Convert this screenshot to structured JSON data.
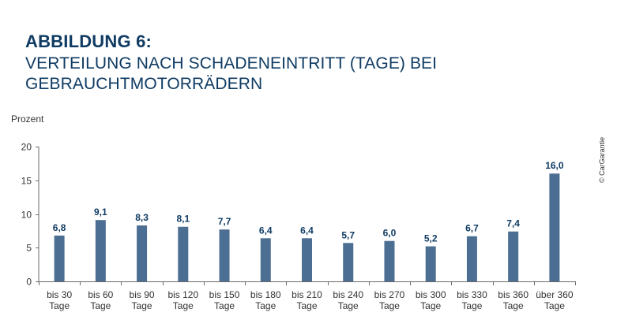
{
  "colors": {
    "title": "#0f3b63",
    "bar": "#4d6e93",
    "axis": "#6b6b6b",
    "label": "#0f3b63"
  },
  "heading": {
    "label": "ABBILDUNG 6:",
    "title": "VERTEILUNG NACH SCHADENEINTRITT (TAGE) BEI GEBRAUCHTMOTORRÄDERN"
  },
  "source": "© CarGarantie",
  "chart_data": {
    "type": "bar",
    "title": "VERTEILUNG NACH SCHADENEINTRITT (TAGE) BEI GEBRAUCHTMOTORRÄDERN",
    "xlabel": "",
    "ylabel": "Prozent",
    "ylim": [
      0,
      20
    ],
    "yticks": [
      0,
      5,
      10,
      15,
      20
    ],
    "grid": false,
    "categories": [
      [
        "bis 30",
        "Tage"
      ],
      [
        "bis 60",
        "Tage"
      ],
      [
        "bis 90",
        "Tage"
      ],
      [
        "bis 120",
        "Tage"
      ],
      [
        "bis 150",
        "Tage"
      ],
      [
        "bis 180",
        "Tage"
      ],
      [
        "bis 210",
        "Tage"
      ],
      [
        "bis 240",
        "Tage"
      ],
      [
        "bis 270",
        "Tage"
      ],
      [
        "bis 300",
        "Tage"
      ],
      [
        "bis 330",
        "Tage"
      ],
      [
        "bis 360",
        "Tage"
      ],
      [
        "über 360",
        "Tage"
      ]
    ],
    "values": [
      6.8,
      9.1,
      8.3,
      8.1,
      7.7,
      6.4,
      6.4,
      5.7,
      6.0,
      5.2,
      6.7,
      7.4,
      16.0
    ],
    "value_labels": [
      "6,8",
      "9,1",
      "8,3",
      "8,1",
      "7,7",
      "6,4",
      "6,4",
      "5,7",
      "6,0",
      "5,2",
      "6,7",
      "7,4",
      "16,0"
    ]
  }
}
